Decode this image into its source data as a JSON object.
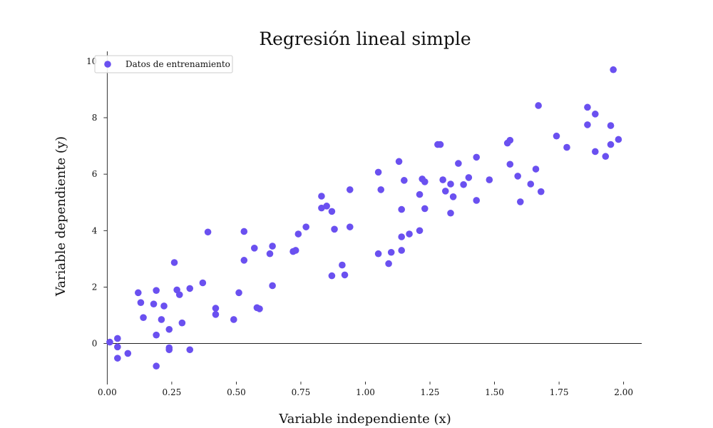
{
  "chart_data": {
    "type": "scatter",
    "title": "Regresión lineal simple",
    "xlabel": "Variable independiente (x)",
    "ylabel": "Variable dependiente (y)",
    "xlim": [
      -0.07,
      2.07
    ],
    "ylim": [
      -1.35,
      10.35
    ],
    "xticks": [
      0.0,
      0.25,
      0.5,
      0.75,
      1.0,
      1.25,
      1.5,
      1.75,
      2.0
    ],
    "xtick_labels": [
      "0.00",
      "0.25",
      "0.50",
      "0.75",
      "1.00",
      "1.25",
      "1.50",
      "1.75",
      "2.00"
    ],
    "yticks": [
      0,
      2,
      4,
      6,
      8,
      10
    ],
    "ytick_labels": [
      "0",
      "2",
      "4",
      "6",
      "8",
      "10"
    ],
    "grid": false,
    "legend_position": "top-left",
    "series": [
      {
        "name": "Datos de entrenamiento",
        "color": "#6a50f0",
        "points": [
          [
            0.01,
            0.05
          ],
          [
            0.04,
            0.18
          ],
          [
            0.04,
            -0.12
          ],
          [
            0.04,
            -0.52
          ],
          [
            0.08,
            -0.35
          ],
          [
            0.12,
            1.8
          ],
          [
            0.13,
            1.45
          ],
          [
            0.14,
            0.92
          ],
          [
            0.18,
            1.4
          ],
          [
            0.19,
            1.88
          ],
          [
            0.19,
            0.3
          ],
          [
            0.19,
            -0.8
          ],
          [
            0.21,
            0.85
          ],
          [
            0.22,
            1.33
          ],
          [
            0.24,
            0.5
          ],
          [
            0.24,
            -0.15
          ],
          [
            0.24,
            -0.22
          ],
          [
            0.26,
            2.87
          ],
          [
            0.27,
            1.9
          ],
          [
            0.28,
            1.73
          ],
          [
            0.29,
            0.73
          ],
          [
            0.32,
            1.95
          ],
          [
            0.32,
            -0.22
          ],
          [
            0.37,
            2.15
          ],
          [
            0.39,
            3.95
          ],
          [
            0.42,
            1.03
          ],
          [
            0.42,
            1.25
          ],
          [
            0.49,
            0.85
          ],
          [
            0.51,
            1.8
          ],
          [
            0.53,
            3.97
          ],
          [
            0.53,
            2.95
          ],
          [
            0.57,
            3.38
          ],
          [
            0.58,
            1.27
          ],
          [
            0.59,
            1.23
          ],
          [
            0.63,
            3.18
          ],
          [
            0.64,
            3.45
          ],
          [
            0.64,
            2.05
          ],
          [
            0.72,
            3.26
          ],
          [
            0.73,
            3.3
          ],
          [
            0.74,
            3.88
          ],
          [
            0.77,
            4.13
          ],
          [
            0.83,
            5.22
          ],
          [
            0.83,
            4.8
          ],
          [
            0.85,
            4.87
          ],
          [
            0.87,
            4.68
          ],
          [
            0.88,
            4.05
          ],
          [
            0.87,
            2.4
          ],
          [
            0.91,
            2.78
          ],
          [
            0.92,
            2.43
          ],
          [
            0.94,
            4.13
          ],
          [
            0.94,
            5.45
          ],
          [
            1.05,
            6.07
          ],
          [
            1.05,
            3.18
          ],
          [
            1.06,
            5.45
          ],
          [
            1.09,
            2.83
          ],
          [
            1.1,
            3.23
          ],
          [
            1.13,
            6.45
          ],
          [
            1.14,
            4.75
          ],
          [
            1.14,
            3.78
          ],
          [
            1.14,
            3.3
          ],
          [
            1.15,
            5.78
          ],
          [
            1.17,
            3.88
          ],
          [
            1.21,
            5.28
          ],
          [
            1.21,
            4.0
          ],
          [
            1.22,
            5.83
          ],
          [
            1.23,
            5.73
          ],
          [
            1.23,
            4.78
          ],
          [
            1.28,
            7.05
          ],
          [
            1.29,
            7.05
          ],
          [
            1.3,
            5.8
          ],
          [
            1.31,
            5.4
          ],
          [
            1.33,
            5.65
          ],
          [
            1.33,
            4.62
          ],
          [
            1.34,
            5.2
          ],
          [
            1.36,
            6.38
          ],
          [
            1.38,
            5.63
          ],
          [
            1.4,
            5.88
          ],
          [
            1.43,
            6.6
          ],
          [
            1.43,
            5.07
          ],
          [
            1.48,
            5.8
          ],
          [
            1.55,
            7.1
          ],
          [
            1.56,
            7.2
          ],
          [
            1.56,
            6.35
          ],
          [
            1.59,
            5.93
          ],
          [
            1.6,
            5.02
          ],
          [
            1.64,
            5.65
          ],
          [
            1.66,
            6.18
          ],
          [
            1.67,
            8.43
          ],
          [
            1.68,
            5.38
          ],
          [
            1.74,
            7.35
          ],
          [
            1.78,
            6.95
          ],
          [
            1.86,
            8.37
          ],
          [
            1.86,
            7.75
          ],
          [
            1.89,
            8.13
          ],
          [
            1.89,
            6.8
          ],
          [
            1.93,
            6.63
          ],
          [
            1.95,
            7.72
          ],
          [
            1.95,
            7.05
          ],
          [
            1.96,
            9.7
          ],
          [
            1.98,
            7.23
          ]
        ]
      }
    ]
  }
}
